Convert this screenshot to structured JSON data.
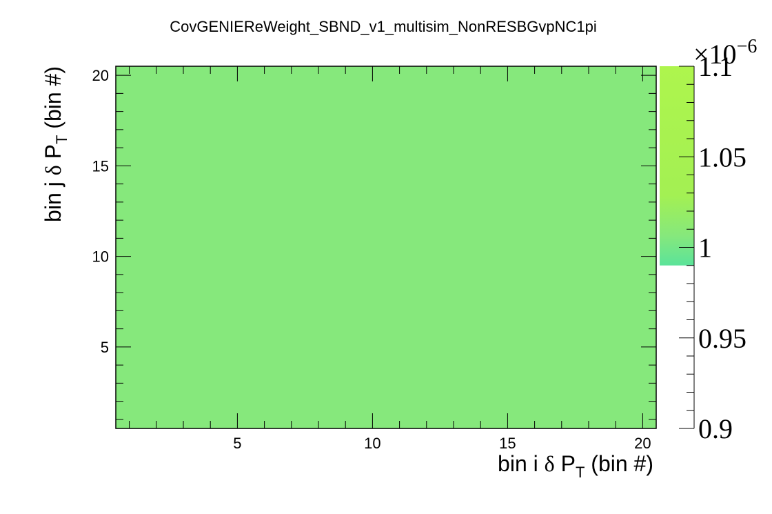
{
  "chart_data": {
    "type": "heatmap",
    "title": "CovGENIEReWeight_SBND_v1_multisim_NonRESBGvpNC1pi",
    "xlabel": {
      "pre": "bin i ",
      "greek": "δ",
      "mid": " P",
      "sub": "T",
      "post": " (bin #)"
    },
    "ylabel": {
      "pre": "bin j ",
      "greek": "δ",
      "mid": " P",
      "sub": "T",
      "post": " (bin #)"
    },
    "xlim": [
      0.5,
      20.5
    ],
    "ylim": [
      0.5,
      20.5
    ],
    "x_ticks": [
      5,
      10,
      15,
      20
    ],
    "y_ticks": [
      5,
      10,
      15,
      20
    ],
    "fill_value": 9.9e-07,
    "fill_color": "#86e87c",
    "colorbar": {
      "zlim": [
        0.9,
        1.1
      ],
      "exponent_base": "×10",
      "exponent_power": "−6",
      "tick_values": [
        0.9,
        0.95,
        1,
        1.05,
        1.1
      ],
      "tick_labels": [
        "0.9",
        "0.95",
        "1",
        "1.05",
        "1.1"
      ],
      "filled_from": 0.99,
      "palette": [
        "#5be39a",
        "#86e87c",
        "#a3f053",
        "#aef54d"
      ]
    }
  }
}
